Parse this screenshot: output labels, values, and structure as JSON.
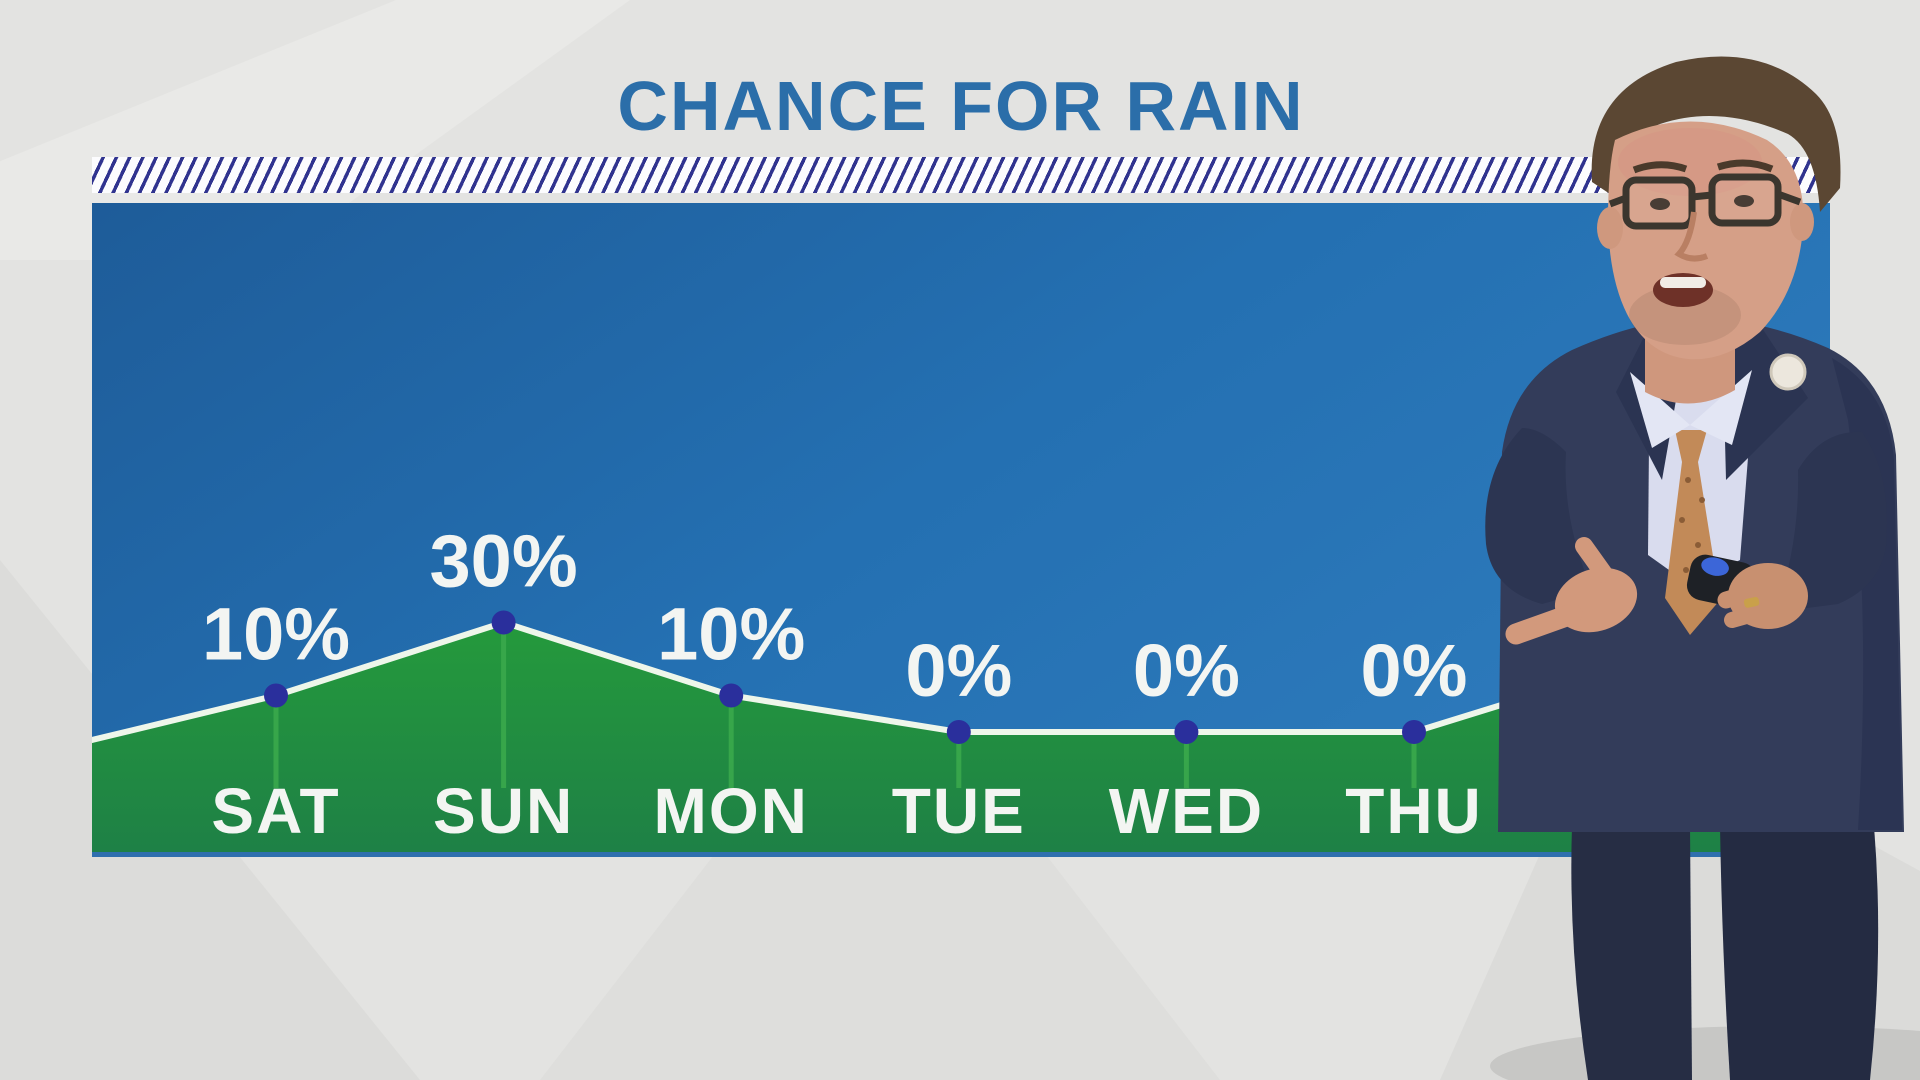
{
  "header": {
    "title": "CHANCE FOR RAIN"
  },
  "chart_data": {
    "type": "area",
    "title": "CHANCE FOR RAIN",
    "categories": [
      "SAT",
      "SUN",
      "MON",
      "TUE",
      "WED",
      "THU"
    ],
    "values": [
      10,
      30,
      10,
      0,
      0,
      0
    ],
    "point_labels": [
      "10%",
      "30%",
      "10%",
      "0%",
      "0%",
      "0%"
    ],
    "series_name": "Chance for rain (%)",
    "xlabel": "",
    "ylabel": "",
    "ylim": [
      0,
      100
    ],
    "grid": false,
    "legend": "none",
    "notes_visible": "area trend rises again after THU toward the right edge, partly occluded by presenter"
  },
  "presenter": {
    "visible": true,
    "position": "right foreground",
    "description": "male weather presenter with glasses and brown hair, navy suit, striped lavender shirt, orange dotted tie, white boutonniere, pointing forward while holding a presentation clicker"
  },
  "colors": {
    "background_gray": "#e3e3e1",
    "title_blue": "#2b6ea9",
    "hatch_navy": "#30338f",
    "panel_blue_dark": "#1e5c99",
    "panel_blue_light": "#2d7abb",
    "area_green_top": "#259c3b",
    "area_green_bottom": "#1e8046",
    "trend_line_white": "#eef6ea",
    "stem_green": "#3aa94c",
    "dot_navy": "#2a2f9c",
    "label_white": "#f3f5f2",
    "panel_bottom_strip": "#2f6fae"
  }
}
